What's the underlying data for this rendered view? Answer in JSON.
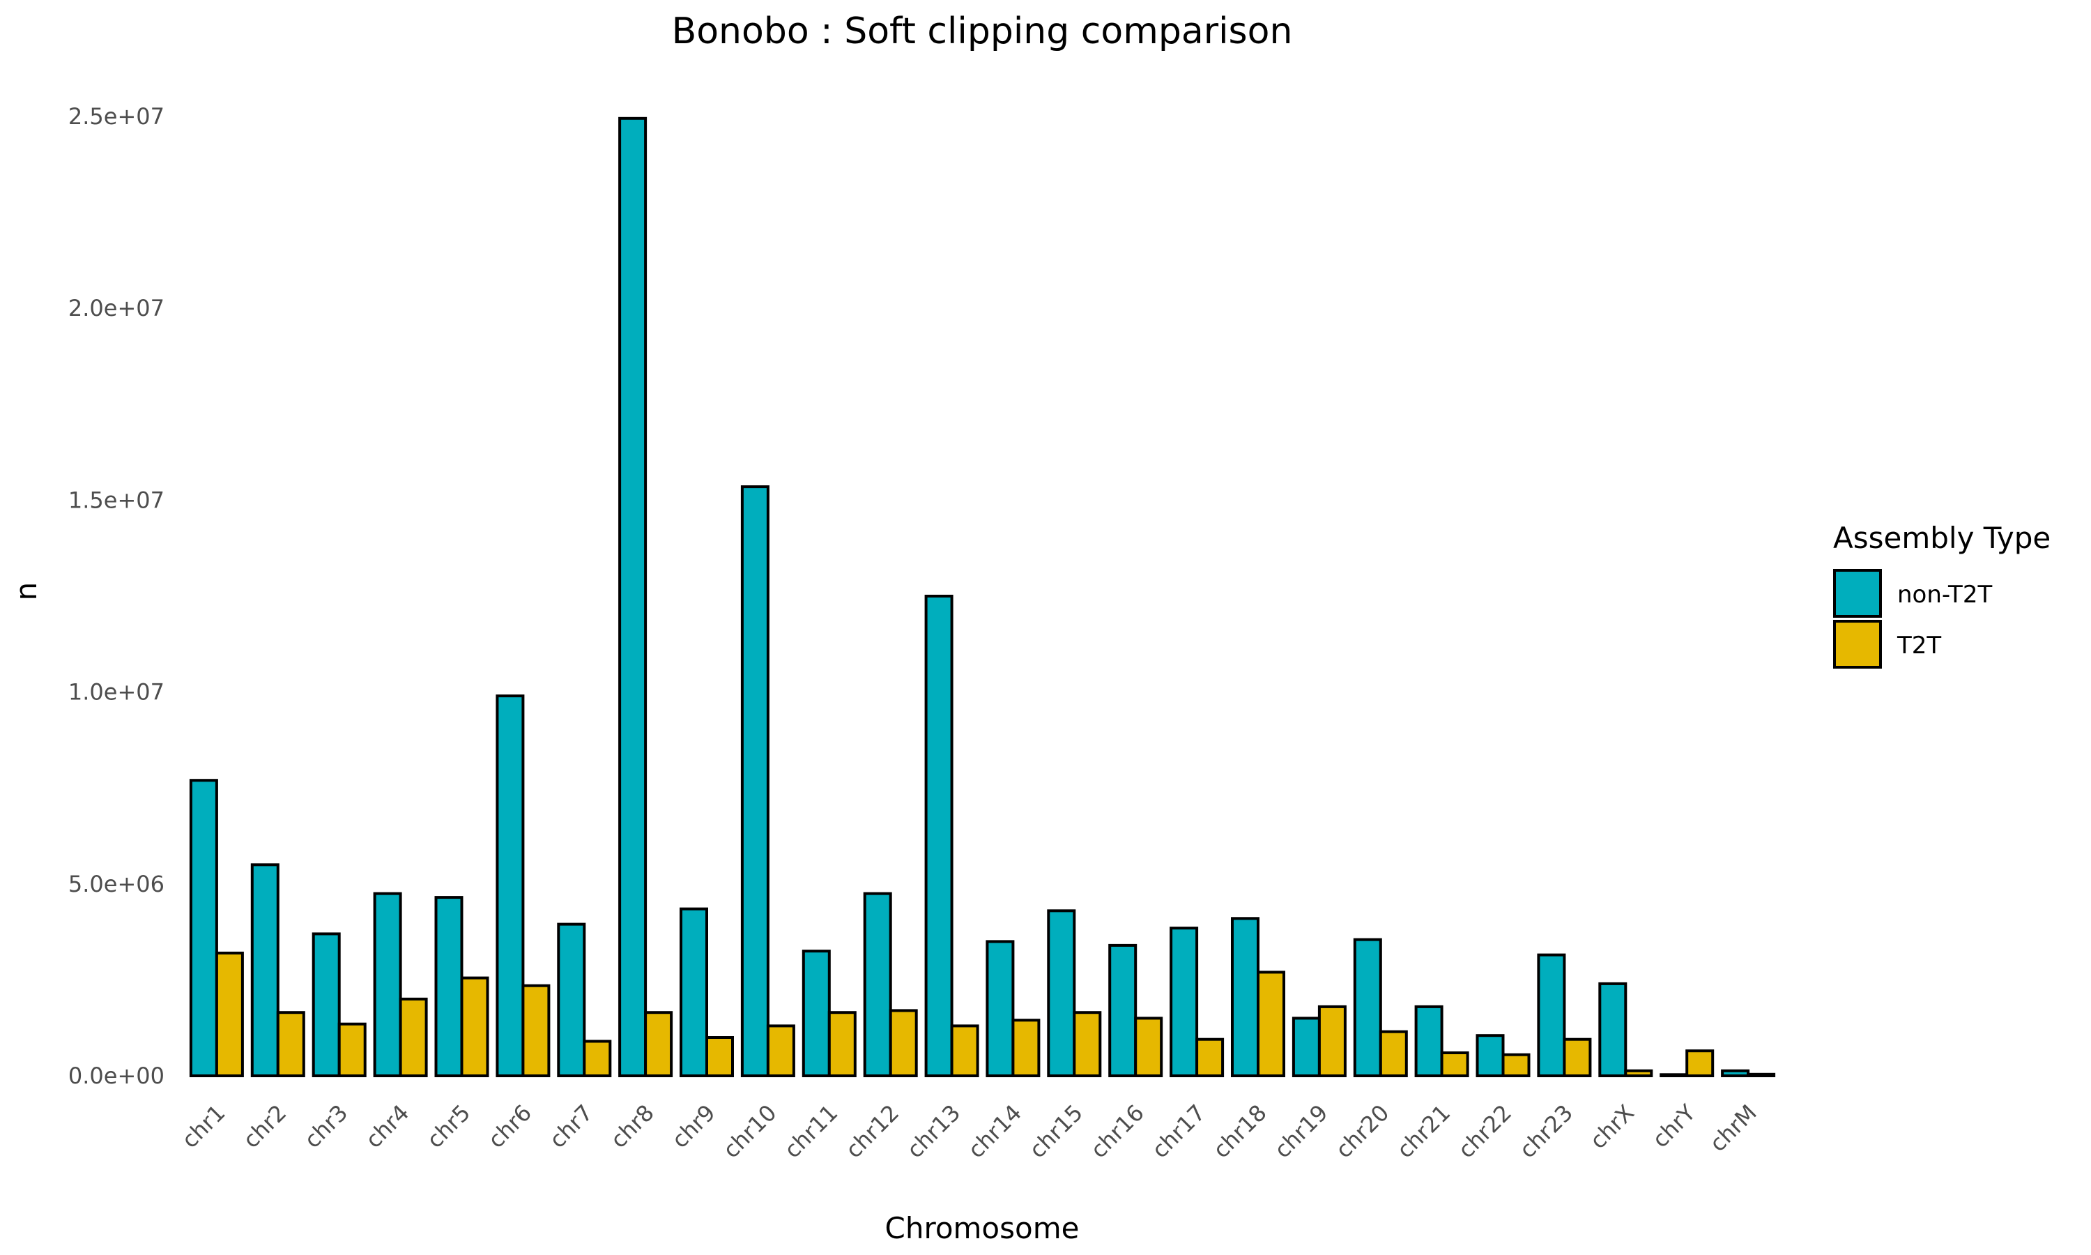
{
  "chart_data": {
    "type": "bar",
    "title": "Bonobo : Soft clipping comparison",
    "xlabel": "Chromosome",
    "ylabel": "n",
    "ylim": [
      0,
      25000000
    ],
    "yticks": [
      {
        "value": 0,
        "label": "0.0e+00"
      },
      {
        "value": 5000000,
        "label": "5.0e+06"
      },
      {
        "value": 10000000,
        "label": "1.0e+07"
      },
      {
        "value": 15000000,
        "label": "1.5e+07"
      },
      {
        "value": 20000000,
        "label": "2.0e+07"
      },
      {
        "value": 25000000,
        "label": "2.5e+07"
      }
    ],
    "categories": [
      "chr1",
      "chr2",
      "chr3",
      "chr4",
      "chr5",
      "chr6",
      "chr7",
      "chr8",
      "chr9",
      "chr10",
      "chr11",
      "chr12",
      "chr13",
      "chr14",
      "chr15",
      "chr16",
      "chr17",
      "chr18",
      "chr19",
      "chr20",
      "chr21",
      "chr22",
      "chr23",
      "chrX",
      "chrY",
      "chrM"
    ],
    "series": [
      {
        "name": "non-T2T",
        "color": "#00AEBD",
        "values": [
          7700000,
          5500000,
          3700000,
          4750000,
          4650000,
          9900000,
          3950000,
          24950000,
          4350000,
          15350000,
          3250000,
          4750000,
          12500000,
          3500000,
          4300000,
          3400000,
          3850000,
          4100000,
          1500000,
          3550000,
          1800000,
          1050000,
          3150000,
          2400000,
          30000,
          130000
        ]
      },
      {
        "name": "T2T",
        "color": "#E6B800",
        "values": [
          3200000,
          1650000,
          1350000,
          2000000,
          2550000,
          2350000,
          900000,
          1650000,
          1000000,
          1300000,
          1650000,
          1700000,
          1300000,
          1450000,
          1650000,
          1500000,
          950000,
          2700000,
          1800000,
          1150000,
          600000,
          550000,
          950000,
          130000,
          650000,
          40000
        ]
      }
    ],
    "legend": {
      "title": "Assembly Type",
      "position": "right"
    },
    "grid": false
  }
}
